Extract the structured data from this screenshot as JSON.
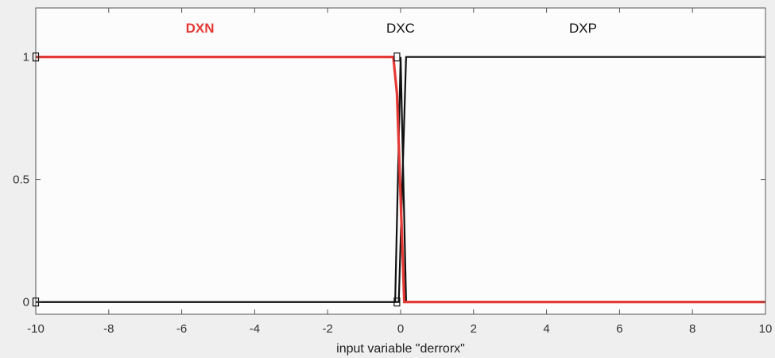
{
  "chart_data": {
    "type": "line",
    "title": "",
    "xlabel": "input variable \"derrorx\"",
    "ylabel": "",
    "xlim": [
      -10,
      10
    ],
    "ylim": [
      -0.05,
      1.2
    ],
    "x_ticks": [
      -10,
      -8,
      -6,
      -4,
      -2,
      0,
      2,
      4,
      6,
      8,
      10
    ],
    "x_tick_labels": [
      "-10",
      "-8",
      "-6",
      "-4",
      "-2",
      "0",
      "2",
      "4",
      "6",
      "8",
      "10"
    ],
    "y_ticks": [
      0,
      0.5,
      1
    ],
    "y_tick_labels": [
      "0",
      "0.5",
      "1"
    ],
    "grid": false,
    "legend": "none",
    "series": [
      {
        "name": "DXN",
        "color": "#e53935",
        "highlighted": true,
        "label_x": -5.5,
        "label_y": 1.1,
        "points": [
          [
            -10,
            1
          ],
          [
            -0.2,
            1
          ],
          [
            -0.1,
            0.85
          ],
          [
            0.1,
            0
          ],
          [
            10,
            0
          ]
        ]
      },
      {
        "name": "DXC",
        "color": "#111111",
        "highlighted": false,
        "label_x": 0,
        "label_y": 1.1,
        "points": [
          [
            -10,
            0
          ],
          [
            -0.15,
            0
          ],
          [
            0,
            1
          ],
          [
            0.15,
            0
          ],
          [
            10,
            0
          ]
        ]
      },
      {
        "name": "DXP",
        "color": "#111111",
        "highlighted": false,
        "label_x": 5,
        "label_y": 1.1,
        "points": [
          [
            -10,
            0
          ],
          [
            -0.05,
            0
          ],
          [
            0.15,
            1
          ],
          [
            10,
            1
          ]
        ]
      }
    ],
    "handles": [
      [
        -10,
        1
      ],
      [
        -10,
        0
      ],
      [
        -0.1,
        1
      ],
      [
        -0.1,
        0
      ]
    ]
  }
}
